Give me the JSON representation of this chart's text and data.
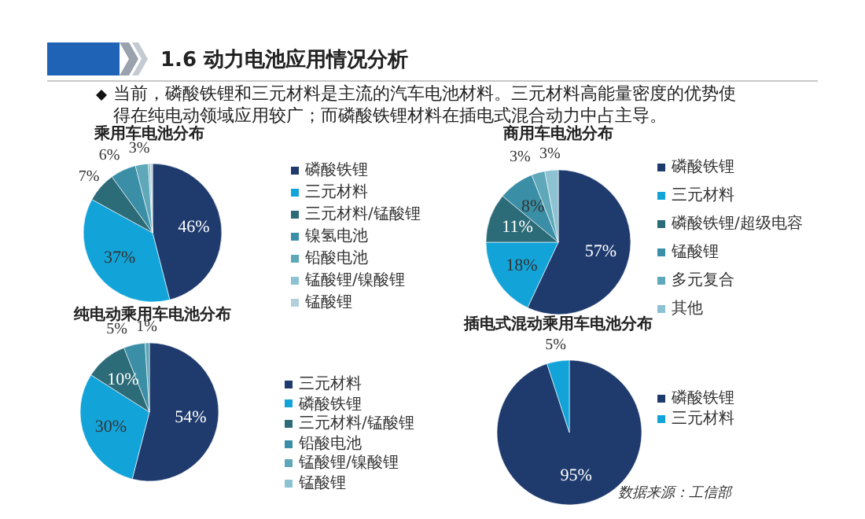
{
  "chart_data": [
    {
      "type": "pie",
      "title": "乘用车电池分布",
      "categories": [
        "磷酸铁锂",
        "三元材料",
        "三元材料/锰酸锂",
        "镍氢电池",
        "铅酸电池",
        "锰酸锂/镍酸锂",
        "锰酸锂"
      ],
      "values": [
        46,
        37,
        7,
        6,
        3,
        0.5,
        0.5
      ],
      "colors": [
        "#1f3b6e",
        "#12a4d9",
        "#2c6b78",
        "#3a8ea6",
        "#5fa8b9",
        "#8cc2d1",
        "#b4cfdc"
      ],
      "value_labels": [
        "46%",
        "37%",
        "7%",
        "6%",
        "3%",
        null,
        null
      ],
      "legend": "right",
      "annotations": [
        "1.6 动力电池应用情况分析",
        "当前，磷酸铁锂和三元材料是主流的汽车电池材料。三元材料高能量密度的优势使得在纯电动领域应用较广；而磷酸铁锂材料在插电式混合动力中占主导。"
      ]
    },
    {
      "type": "pie",
      "title": "商用车电池分布",
      "categories": [
        "磷酸铁锂",
        "三元材料",
        "磷酸铁锂/超级电容",
        "锰酸锂",
        "多元复合",
        "其他"
      ],
      "values": [
        57,
        18,
        11,
        8,
        3,
        3
      ],
      "colors": [
        "#1f3b6e",
        "#12a4d9",
        "#2c6b78",
        "#3a8ea6",
        "#5fa8b9",
        "#8cc2d1"
      ],
      "value_labels": [
        "57%",
        "18%",
        "11%",
        "8%",
        "3%",
        "3%"
      ],
      "legend": "right"
    },
    {
      "type": "pie",
      "title": "纯电动乘用车电池分布",
      "categories": [
        "三元材料",
        "磷酸铁锂",
        "三元材料/锰酸锂",
        "铅酸电池",
        "锰酸锂/镍酸锂",
        "锰酸锂"
      ],
      "values": [
        54,
        30,
        10,
        5,
        1,
        0
      ],
      "colors": [
        "#1f3b6e",
        "#12a4d9",
        "#2c6b78",
        "#3a8ea6",
        "#5fa8b9",
        "#8cc2d1"
      ],
      "value_labels": [
        "54%",
        "30%",
        "10%",
        "5%",
        "1%",
        null
      ],
      "legend": "right"
    },
    {
      "type": "pie",
      "title": "插电式混动乘用车电池分布",
      "categories": [
        "磷酸铁锂",
        "三元材料"
      ],
      "values": [
        95,
        5
      ],
      "colors": [
        "#1f3b6e",
        "#12a4d9"
      ],
      "value_labels": [
        "95%",
        "5%"
      ],
      "legend": "right",
      "annotations": [
        "数据来源：工信部"
      ]
    }
  ]
}
